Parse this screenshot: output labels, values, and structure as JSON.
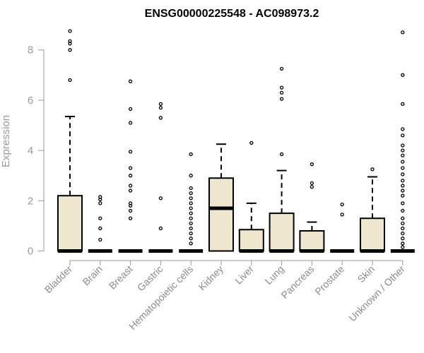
{
  "chart_data": {
    "type": "box",
    "title": "ENSG00000225548 - AC098973.2",
    "ylabel": "Expression",
    "xlabel": "",
    "ylim": [
      0,
      8.8
    ],
    "yticks": [
      0,
      2,
      4,
      6,
      8
    ],
    "grid": false,
    "legend": "none",
    "colors": {
      "box_fill": "#EEE7CE",
      "stroke": "#000000",
      "axis": "#9a9a9a"
    },
    "categories": [
      "Bladder",
      "Brain",
      "Breast",
      "Gastric",
      "Hematopoietic cells",
      "Kidney",
      "Liver",
      "Lung",
      "Pancreas",
      "Prostate",
      "Skin",
      "Unknown / Other"
    ],
    "boxes": [
      {
        "category": "Bladder",
        "whisker_low": 0,
        "q1": 0,
        "median": 0,
        "q3": 2.2,
        "whisker_high": 5.35,
        "outliers": [
          6.8,
          8.0,
          8.25,
          8.35,
          8.75
        ]
      },
      {
        "category": "Brain",
        "whisker_low": 0,
        "q1": 0,
        "median": 0,
        "q3": 0,
        "whisker_high": 0,
        "outliers": [
          0.45,
          0.9,
          1.3,
          1.9,
          2.05,
          2.15
        ]
      },
      {
        "category": "Breast",
        "whisker_low": 0,
        "q1": 0,
        "median": 0,
        "q3": 0,
        "whisker_high": 0,
        "outliers": [
          1.3,
          1.6,
          1.8,
          1.9,
          2.4,
          2.6,
          3.0,
          3.3,
          3.95,
          5.1,
          5.65,
          6.75
        ]
      },
      {
        "category": "Gastric",
        "whisker_low": 0,
        "q1": 0,
        "median": 0,
        "q3": 0,
        "whisker_high": 0,
        "outliers": [
          0.9,
          2.1,
          5.3,
          5.7,
          5.85
        ]
      },
      {
        "category": "Hematopoietic cells",
        "whisker_low": 0,
        "q1": 0,
        "median": 0,
        "q3": 0,
        "whisker_high": 0,
        "outliers": [
          0.3,
          0.5,
          0.7,
          0.9,
          1.1,
          1.3,
          1.5,
          1.7,
          1.9,
          2.1,
          2.3,
          2.5,
          3.0,
          3.85
        ]
      },
      {
        "category": "Kidney",
        "whisker_low": 0,
        "q1": 0,
        "median": 1.7,
        "q3": 2.9,
        "whisker_high": 4.25,
        "outliers": []
      },
      {
        "category": "Liver",
        "whisker_low": 0,
        "q1": 0,
        "median": 0,
        "q3": 0.85,
        "whisker_high": 1.9,
        "outliers": [
          4.3
        ]
      },
      {
        "category": "Lung",
        "whisker_low": 0,
        "q1": 0,
        "median": 0,
        "q3": 1.5,
        "whisker_high": 3.2,
        "outliers": [
          3.85,
          6.05,
          6.3,
          6.5,
          7.25
        ]
      },
      {
        "category": "Pancreas",
        "whisker_low": 0,
        "q1": 0,
        "median": 0,
        "q3": 0.8,
        "whisker_high": 1.15,
        "outliers": [
          2.55,
          2.7,
          3.45
        ]
      },
      {
        "category": "Prostate",
        "whisker_low": 0,
        "q1": 0,
        "median": 0,
        "q3": 0,
        "whisker_high": 0,
        "outliers": [
          1.45,
          1.85
        ]
      },
      {
        "category": "Skin",
        "whisker_low": 0,
        "q1": 0,
        "median": 0,
        "q3": 1.3,
        "whisker_high": 2.95,
        "outliers": [
          3.25
        ]
      },
      {
        "category": "Unknown / Other",
        "whisker_low": 0,
        "q1": 0,
        "median": 0,
        "q3": 0,
        "whisker_high": 0,
        "outliers": [
          0.15,
          0.3,
          0.5,
          0.7,
          0.9,
          1.1,
          1.3,
          1.6,
          1.9,
          2.2,
          2.4,
          2.6,
          2.8,
          3.05,
          3.3,
          3.55,
          3.8,
          4.0,
          4.2,
          4.6,
          4.85,
          5.85,
          7.0,
          8.7
        ]
      }
    ]
  }
}
